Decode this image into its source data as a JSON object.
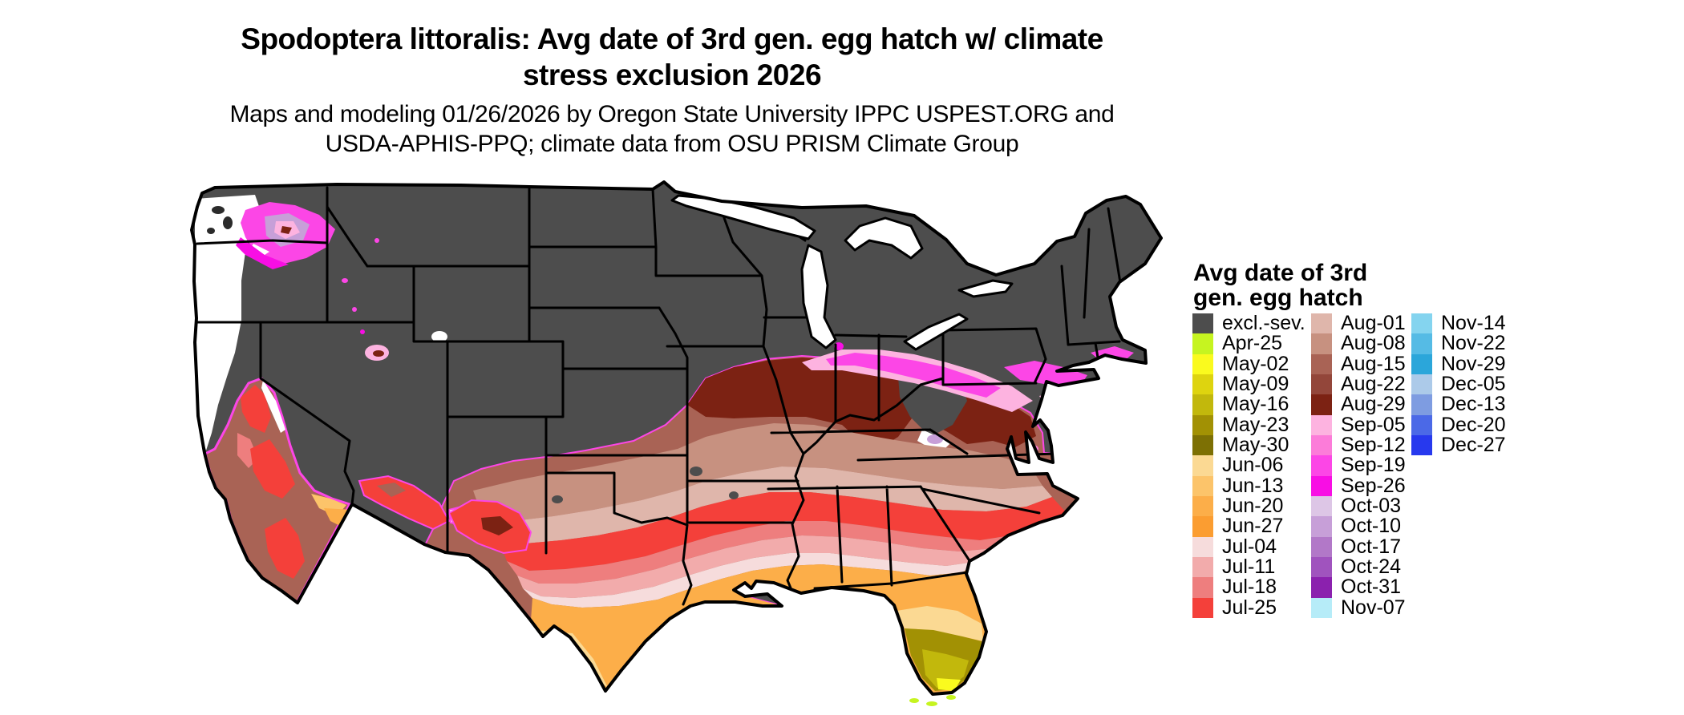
{
  "title": {
    "line1": "Spodoptera littoralis: Avg date of 3rd gen. egg hatch w/ climate",
    "line2": "stress exclusion 2026"
  },
  "subtitle": {
    "line1": "Maps and modeling 01/26/2026 by Oregon State University IPPC USPEST.ORG and",
    "line2": "USDA-APHIS-PPQ; climate data from OSU PRISM Climate Group"
  },
  "legend": {
    "title_line1": "Avg date of 3rd",
    "title_line2": "gen. egg hatch",
    "columns": [
      {
        "entries": [
          {
            "label": "excl.-sev.",
            "color": "#4d4d4d"
          },
          {
            "label": "Apr-25",
            "color": "#c6f420"
          },
          {
            "label": "May-02",
            "color": "#fafa1e"
          },
          {
            "label": "May-09",
            "color": "#ded40f"
          },
          {
            "label": "May-16",
            "color": "#c2b80c"
          },
          {
            "label": "May-23",
            "color": "#a29104"
          },
          {
            "label": "May-30",
            "color": "#7d7004"
          },
          {
            "label": "Jun-06",
            "color": "#fbd993"
          },
          {
            "label": "Jun-13",
            "color": "#fcc46a"
          },
          {
            "label": "Jun-20",
            "color": "#fcae49"
          },
          {
            "label": "Jun-27",
            "color": "#fb9d31"
          },
          {
            "label": "Jul-04",
            "color": "#f6dcdc"
          },
          {
            "label": "Jul-11",
            "color": "#f2abab"
          },
          {
            "label": "Jul-18",
            "color": "#ee7e7e"
          },
          {
            "label": "Jul-25",
            "color": "#f4403a"
          }
        ]
      },
      {
        "entries": [
          {
            "label": "Aug-01",
            "color": "#dfb6ab"
          },
          {
            "label": "Aug-08",
            "color": "#c79180"
          },
          {
            "label": "Aug-15",
            "color": "#a96355"
          },
          {
            "label": "Aug-22",
            "color": "#93463a"
          },
          {
            "label": "Aug-29",
            "color": "#7c2213"
          },
          {
            "label": "Sep-05",
            "color": "#fdb3e0"
          },
          {
            "label": "Sep-12",
            "color": "#fc7cd9"
          },
          {
            "label": "Sep-19",
            "color": "#fc46e6"
          },
          {
            "label": "Sep-26",
            "color": "#f80ee4"
          },
          {
            "label": "Oct-03",
            "color": "#ddc6e6"
          },
          {
            "label": "Oct-10",
            "color": "#c79fd8"
          },
          {
            "label": "Oct-17",
            "color": "#b278c8"
          },
          {
            "label": "Oct-24",
            "color": "#a053be"
          },
          {
            "label": "Oct-31",
            "color": "#8b21ae"
          },
          {
            "label": "Nov-07",
            "color": "#b6ecf8"
          }
        ]
      },
      {
        "entries": [
          {
            "label": "Nov-14",
            "color": "#84d4ef"
          },
          {
            "label": "Nov-22",
            "color": "#55bbe5"
          },
          {
            "label": "Nov-29",
            "color": "#2ba6da"
          },
          {
            "label": "Dec-05",
            "color": "#accae9"
          },
          {
            "label": "Dec-13",
            "color": "#7e9ce1"
          },
          {
            "label": "Dec-20",
            "color": "#4b69e7"
          },
          {
            "label": "Dec-27",
            "color": "#2739ee"
          }
        ]
      }
    ]
  },
  "colors": {
    "background": "#ffffff",
    "state_border": "#000000",
    "water": "#ffffff"
  }
}
